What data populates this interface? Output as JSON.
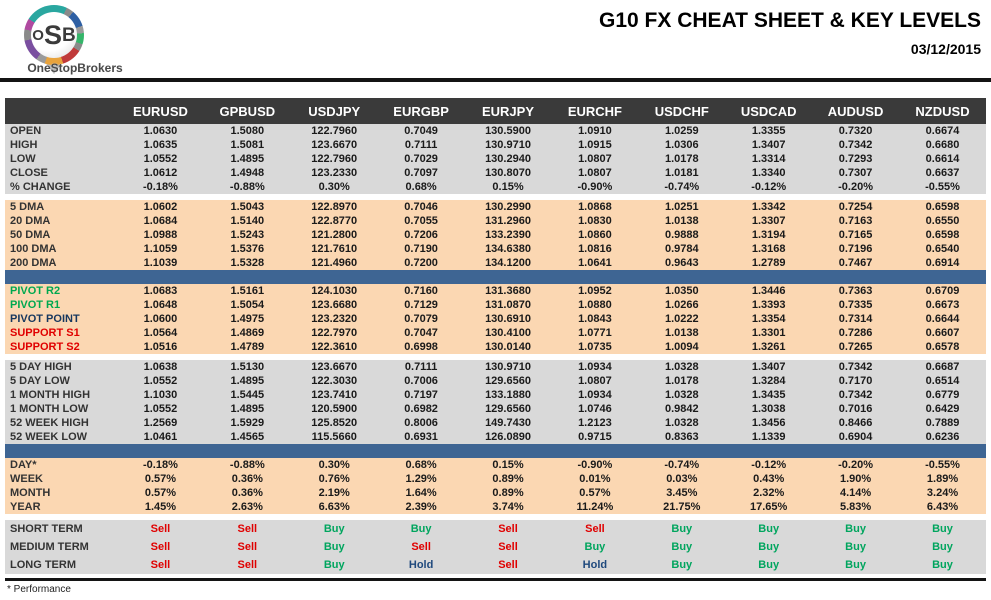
{
  "header": {
    "title": "G10 FX CHEAT SHEET & KEY LEVELS",
    "date": "03/12/2015",
    "logo_o": "O",
    "logo_s": "S",
    "logo_b": "B",
    "brand": "OneStopBrokers"
  },
  "footnote": "* Performance",
  "colors": {
    "section_gray": "#d9d9d9",
    "section_peach": "#fbd7b2",
    "divider_blue": "#3e6593",
    "header_dark": "#3a3a3a",
    "buy_green": "#00a55e",
    "sell_red": "#e00000",
    "hold_blue": "#1f497d",
    "resistance_green": "#00a84f",
    "support_red": "#e00000"
  },
  "table": {
    "pairs": [
      "EURUSD",
      "GPBUSD",
      "USDJPY",
      "EURGBP",
      "EURJPY",
      "EURCHF",
      "USDCHF",
      "USDCAD",
      "AUDUSD",
      "NZDUSD"
    ],
    "sections": [
      {
        "name": "daily-quotes",
        "bg": "gray",
        "divider_after": "gap",
        "rows": [
          {
            "label": "OPEN",
            "values": [
              "1.0630",
              "1.5080",
              "122.7960",
              "0.7049",
              "130.5900",
              "1.0910",
              "1.0259",
              "1.3355",
              "0.7320",
              "0.6674"
            ]
          },
          {
            "label": "HIGH",
            "values": [
              "1.0635",
              "1.5081",
              "123.6670",
              "0.7111",
              "130.9710",
              "1.0915",
              "1.0306",
              "1.3407",
              "0.7342",
              "0.6680"
            ]
          },
          {
            "label": "LOW",
            "values": [
              "1.0552",
              "1.4895",
              "122.7960",
              "0.7029",
              "130.2940",
              "1.0807",
              "1.0178",
              "1.3314",
              "0.7293",
              "0.6614"
            ]
          },
          {
            "label": "CLOSE",
            "values": [
              "1.0612",
              "1.4948",
              "123.2330",
              "0.7097",
              "130.8070",
              "1.0807",
              "1.0181",
              "1.3340",
              "0.7307",
              "0.6637"
            ]
          },
          {
            "label": "% CHANGE",
            "values": [
              "-0.18%",
              "-0.88%",
              "0.30%",
              "0.68%",
              "0.15%",
              "-0.90%",
              "-0.74%",
              "-0.12%",
              "-0.20%",
              "-0.55%"
            ]
          }
        ]
      },
      {
        "name": "moving-averages",
        "bg": "peach",
        "divider_after": "blue",
        "rows": [
          {
            "label": "5 DMA",
            "values": [
              "1.0602",
              "1.5043",
              "122.8970",
              "0.7046",
              "130.2990",
              "1.0868",
              "1.0251",
              "1.3342",
              "0.7254",
              "0.6598"
            ]
          },
          {
            "label": "20 DMA",
            "values": [
              "1.0684",
              "1.5140",
              "122.8770",
              "0.7055",
              "131.2960",
              "1.0830",
              "1.0138",
              "1.3307",
              "0.7163",
              "0.6550"
            ]
          },
          {
            "label": "50 DMA",
            "values": [
              "1.0988",
              "1.5243",
              "121.2800",
              "0.7206",
              "133.2390",
              "1.0860",
              "0.9888",
              "1.3194",
              "0.7165",
              "0.6598"
            ]
          },
          {
            "label": "100 DMA",
            "values": [
              "1.1059",
              "1.5376",
              "121.7610",
              "0.7190",
              "134.6380",
              "1.0816",
              "0.9784",
              "1.3168",
              "0.7196",
              "0.6540"
            ]
          },
          {
            "label": "200 DMA",
            "values": [
              "1.1039",
              "1.5328",
              "121.4960",
              "0.7200",
              "134.1200",
              "1.0641",
              "0.9643",
              "1.2789",
              "0.7467",
              "0.6914"
            ]
          }
        ]
      },
      {
        "name": "pivots",
        "bg": "peach",
        "divider_after": "gap",
        "rows": [
          {
            "label": "PIVOT R2",
            "label_color": "green",
            "values": [
              "1.0683",
              "1.5161",
              "124.1030",
              "0.7160",
              "131.3680",
              "1.0952",
              "1.0350",
              "1.3446",
              "0.7363",
              "0.6709"
            ]
          },
          {
            "label": "PIVOT R1",
            "label_color": "green",
            "values": [
              "1.0648",
              "1.5054",
              "123.6680",
              "0.7129",
              "131.0870",
              "1.0880",
              "1.0266",
              "1.3393",
              "0.7335",
              "0.6673"
            ]
          },
          {
            "label": "PIVOT POINT",
            "label_color": "dark",
            "values": [
              "1.0600",
              "1.4975",
              "123.2320",
              "0.7079",
              "130.6910",
              "1.0843",
              "1.0222",
              "1.3354",
              "0.7314",
              "0.6644"
            ]
          },
          {
            "label": "SUPPORT S1",
            "label_color": "red",
            "values": [
              "1.0564",
              "1.4869",
              "122.7970",
              "0.7047",
              "130.4100",
              "1.0771",
              "1.0138",
              "1.3301",
              "0.7286",
              "0.6607"
            ]
          },
          {
            "label": "SUPPORT S2",
            "label_color": "red",
            "values": [
              "1.0516",
              "1.4789",
              "122.3610",
              "0.6998",
              "130.0140",
              "1.0735",
              "1.0094",
              "1.3261",
              "0.7265",
              "0.6578"
            ]
          }
        ]
      },
      {
        "name": "ranges",
        "bg": "gray",
        "divider_after": "blue",
        "rows": [
          {
            "label": "5 DAY HIGH",
            "values": [
              "1.0638",
              "1.5130",
              "123.6670",
              "0.7111",
              "130.9710",
              "1.0934",
              "1.0328",
              "1.3407",
              "0.7342",
              "0.6687"
            ]
          },
          {
            "label": "5 DAY LOW",
            "values": [
              "1.0552",
              "1.4895",
              "122.3030",
              "0.7006",
              "129.6560",
              "1.0807",
              "1.0178",
              "1.3284",
              "0.7170",
              "0.6514"
            ]
          },
          {
            "label": "1 MONTH HIGH",
            "values": [
              "1.1030",
              "1.5445",
              "123.7410",
              "0.7197",
              "133.1880",
              "1.0934",
              "1.0328",
              "1.3435",
              "0.7342",
              "0.6779"
            ]
          },
          {
            "label": "1 MONTH LOW",
            "values": [
              "1.0552",
              "1.4895",
              "120.5900",
              "0.6982",
              "129.6560",
              "1.0746",
              "0.9842",
              "1.3038",
              "0.7016",
              "0.6429"
            ]
          },
          {
            "label": "52 WEEK HIGH",
            "values": [
              "1.2569",
              "1.5929",
              "125.8520",
              "0.8006",
              "149.7430",
              "1.2123",
              "1.0328",
              "1.3456",
              "0.8466",
              "0.7889"
            ]
          },
          {
            "label": "52 WEEK LOW",
            "values": [
              "1.0461",
              "1.4565",
              "115.5660",
              "0.6931",
              "126.0890",
              "0.9715",
              "0.8363",
              "1.1339",
              "0.6904",
              "0.6236"
            ]
          }
        ]
      },
      {
        "name": "performance",
        "bg": "peach",
        "divider_after": "gap",
        "rows": [
          {
            "label": "DAY*",
            "values": [
              "-0.18%",
              "-0.88%",
              "0.30%",
              "0.68%",
              "0.15%",
              "-0.90%",
              "-0.74%",
              "-0.12%",
              "-0.20%",
              "-0.55%"
            ]
          },
          {
            "label": "WEEK",
            "values": [
              "0.57%",
              "0.36%",
              "0.76%",
              "1.29%",
              "0.89%",
              "0.01%",
              "0.03%",
              "0.43%",
              "1.90%",
              "1.89%"
            ]
          },
          {
            "label": "MONTH",
            "values": [
              "0.57%",
              "0.36%",
              "2.19%",
              "1.64%",
              "0.89%",
              "0.57%",
              "3.45%",
              "2.32%",
              "4.14%",
              "3.24%"
            ]
          },
          {
            "label": "YEAR",
            "values": [
              "1.45%",
              "2.63%",
              "6.63%",
              "2.39%",
              "3.74%",
              "11.24%",
              "21.75%",
              "17.65%",
              "5.83%",
              "6.43%"
            ]
          }
        ]
      },
      {
        "name": "signals",
        "bg": "gray",
        "tall": true,
        "rows": [
          {
            "label": "SHORT TERM",
            "values": [
              "Sell",
              "Sell",
              "Buy",
              "Buy",
              "Sell",
              "Sell",
              "Buy",
              "Buy",
              "Buy",
              "Buy"
            ]
          },
          {
            "label": "MEDIUM TERM",
            "values": [
              "Sell",
              "Sell",
              "Buy",
              "Sell",
              "Sell",
              "Buy",
              "Buy",
              "Buy",
              "Buy",
              "Buy"
            ]
          },
          {
            "label": "LONG TERM",
            "values": [
              "Sell",
              "Sell",
              "Buy",
              "Hold",
              "Sell",
              "Hold",
              "Buy",
              "Buy",
              "Buy",
              "Buy"
            ]
          }
        ]
      }
    ]
  }
}
